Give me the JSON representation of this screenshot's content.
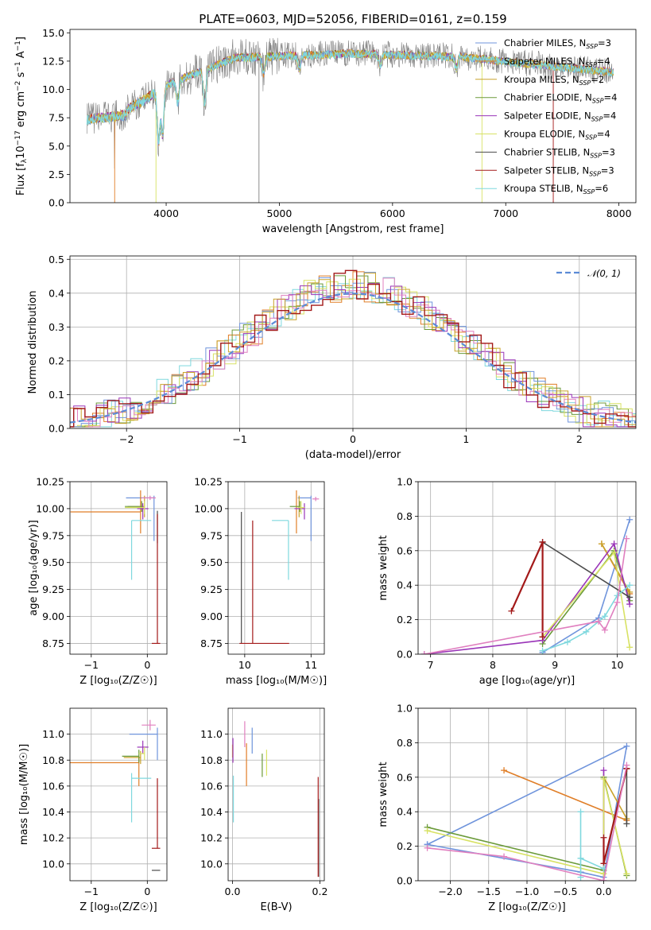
{
  "title": "PLATE=0603, MJD=52056, FIBERID=0161, z=0.159",
  "colors": {
    "chabrier_miles": "#6f94dc",
    "salpeter_miles": "#e07e27",
    "kroupa_miles": "#c9a22b",
    "chabrier_elodie": "#6b9a3a",
    "salpeter_elodie": "#9a35b8",
    "kroupa_elodie": "#d8e264",
    "chabrier_stelib": "#4a4a4a",
    "salpeter_stelib": "#a31a1a",
    "kroupa_stelib": "#7fd8de",
    "data": "#808080",
    "pink": "#e07fbf",
    "normal": "#5b8bd6"
  },
  "legend": {
    "series": [
      {
        "name": "Chabrier MILES, N",
        "sub": "SSP",
        "tail": "=3",
        "key": "chabrier_miles"
      },
      {
        "name": "Salpeter MILES, N",
        "sub": "SSP",
        "tail": "=4",
        "key": "salpeter_miles"
      },
      {
        "name": "Kroupa MILES, N",
        "sub": "SSP",
        "tail": "=2",
        "key": "kroupa_miles"
      },
      {
        "name": "Chabrier ELODIE, N",
        "sub": "SSP",
        "tail": "=4",
        "key": "chabrier_elodie"
      },
      {
        "name": "Salpeter ELODIE, N",
        "sub": "SSP",
        "tail": "=4",
        "key": "salpeter_elodie"
      },
      {
        "name": "Kroupa ELODIE, N",
        "sub": "SSP",
        "tail": "=4",
        "key": "kroupa_elodie"
      },
      {
        "name": "Chabrier STELIB, N",
        "sub": "SSP",
        "tail": "=3",
        "key": "chabrier_stelib"
      },
      {
        "name": "Salpeter STELIB, N",
        "sub": "SSP",
        "tail": "=3",
        "key": "salpeter_stelib"
      },
      {
        "name": "Kroupa STELIB, N",
        "sub": "SSP",
        "tail": "=6",
        "key": "kroupa_stelib"
      }
    ],
    "normal_label": "𝒩(0, 1)"
  },
  "chart_data": [
    {
      "id": "spectrum",
      "type": "line",
      "xlabel": "wavelength [Angstrom, rest frame]",
      "ylabel": "Flux [f_λ 10^-17 erg cm^-2 s^-1 A^-1]",
      "xlim": [
        3150,
        8150
      ],
      "ylim": [
        0,
        15.3
      ],
      "xticks": [
        4000,
        5000,
        6000,
        7000,
        8000
      ],
      "yticks": [
        "0.0",
        "2.5",
        "5.0",
        "7.5",
        "10.0",
        "12.5",
        "15.0"
      ],
      "spectrum_range": [
        3300,
        7950
      ],
      "grid": false,
      "legend_position": "upper right"
    },
    {
      "id": "residuals",
      "type": "histogram",
      "xlabel": "(data-model)/error",
      "ylabel": "Normed distribution",
      "xlim": [
        -2.5,
        2.5
      ],
      "ylim": [
        0,
        0.51
      ],
      "xticks": [
        "−2",
        "−1",
        "0",
        "1",
        "2"
      ],
      "yticks": [
        "0.0",
        "0.1",
        "0.2",
        "0.3",
        "0.4",
        "0.5"
      ],
      "grid": true,
      "legend_position": "upper right",
      "curve": "normal(0,1)"
    },
    {
      "id": "age_vs_Z",
      "type": "errorbar",
      "xlabel": "Z [log₁₀(Z/Z☉)]",
      "ylabel": "age  [log₁₀(age/yr)]",
      "xlim": [
        -1.38,
        0.35
      ],
      "ylim": [
        8.65,
        10.25
      ],
      "xticks": [
        "−1",
        "0"
      ],
      "yticks": [
        "8.75",
        "9.00",
        "9.25",
        "9.50",
        "9.75",
        "10.00",
        "10.25"
      ],
      "points": [
        {
          "key": "chabrier_miles",
          "x": 0.12,
          "xerr": [
            0.5,
            0.0
          ],
          "y": 10.1,
          "yerr": [
            0.4,
            0.02
          ]
        },
        {
          "key": "salpeter_miles",
          "x": -0.12,
          "xerr": [
            1.25,
            0.0
          ],
          "y": 9.97,
          "yerr": [
            0.2,
            0.2
          ]
        },
        {
          "key": "kroupa_miles",
          "x": -0.05,
          "xerr": [
            0.3,
            0.0
          ],
          "y": 10.02,
          "yerr": [
            0.1,
            0.1
          ]
        },
        {
          "key": "chabrier_elodie",
          "x": -0.1,
          "xerr": [
            0.3,
            0.0
          ],
          "y": 10.02,
          "yerr": [
            0.05,
            0.05
          ]
        },
        {
          "key": "salpeter_elodie",
          "x": -0.08,
          "xerr": [
            0.1,
            0.1
          ],
          "y": 10.0,
          "yerr": [
            0.1,
            0.05
          ]
        },
        {
          "key": "kroupa_elodie",
          "x": -0.05,
          "xerr": [
            0.35,
            0.0
          ],
          "y": 10.01,
          "yerr": [
            0.06,
            0.06
          ]
        },
        {
          "key": "chabrier_stelib",
          "x": 0.18,
          "xerr": [
            0.0,
            0.0
          ],
          "y": 9.98,
          "yerr": [
            0.3,
            0.0
          ]
        },
        {
          "key": "salpeter_stelib",
          "x": 0.18,
          "xerr": [
            0.1,
            0.05
          ],
          "y": 8.75,
          "yerr": [
            0.0,
            1.2
          ]
        },
        {
          "key": "kroupa_stelib",
          "x": -0.28,
          "xerr": [
            0.0,
            0.35
          ],
          "y": 9.89,
          "yerr": [
            0.55,
            0.0
          ]
        },
        {
          "key": "pink",
          "x": 0.05,
          "xerr": [
            0.15,
            0.1
          ],
          "y": 10.1,
          "yerr": [
            0.02,
            0.02
          ]
        }
      ]
    },
    {
      "id": "age_vs_mass",
      "type": "errorbar",
      "xlabel": "mass [log₁₀(M/M☉)]",
      "ylabel": "",
      "xlim": [
        9.75,
        11.2
      ],
      "ylim": [
        8.65,
        10.25
      ],
      "xticks": [
        "10",
        "11"
      ],
      "yticks": [
        "8.75",
        "9.00",
        "9.25",
        "9.50",
        "9.75",
        "10.00",
        "10.25"
      ],
      "points": [
        {
          "key": "chabrier_miles",
          "x": 11.0,
          "xerr": [
            0.2,
            0.0
          ],
          "y": 10.1,
          "yerr": [
            0.4,
            0.02
          ]
        },
        {
          "key": "salpeter_miles",
          "x": 10.78,
          "xerr": [
            0.0,
            0.0
          ],
          "y": 9.97,
          "yerr": [
            0.2,
            0.2
          ]
        },
        {
          "key": "kroupa_miles",
          "x": 10.82,
          "xerr": [
            0.0,
            0.0
          ],
          "y": 10.02,
          "yerr": [
            0.1,
            0.1
          ]
        },
        {
          "key": "chabrier_elodie",
          "x": 10.83,
          "xerr": [
            0.15,
            0.0
          ],
          "y": 10.02,
          "yerr": [
            0.05,
            0.05
          ]
        },
        {
          "key": "salpeter_elodie",
          "x": 10.9,
          "xerr": [
            0.15,
            0.0
          ],
          "y": 10.0,
          "yerr": [
            0.1,
            0.05
          ]
        },
        {
          "key": "kroupa_elodie",
          "x": 10.85,
          "xerr": [
            0.05,
            0.05
          ],
          "y": 10.01,
          "yerr": [
            0.06,
            0.06
          ]
        },
        {
          "key": "chabrier_stelib",
          "x": 9.95,
          "xerr": [
            0.0,
            0.0
          ],
          "y": 8.75,
          "yerr": [
            0.0,
            1.22
          ]
        },
        {
          "key": "salpeter_stelib",
          "x": 10.12,
          "xerr": [
            0.2,
            0.55
          ],
          "y": 8.75,
          "yerr": [
            0.0,
            1.14
          ]
        },
        {
          "key": "kroupa_stelib",
          "x": 10.66,
          "xerr": [
            0.25,
            0.0
          ],
          "y": 9.89,
          "yerr": [
            0.55,
            0.0
          ]
        },
        {
          "key": "pink",
          "x": 11.07,
          "xerr": [
            0.05,
            0.05
          ],
          "y": 10.09,
          "yerr": [
            0.02,
            0.02
          ]
        }
      ]
    },
    {
      "id": "weight_vs_age",
      "type": "line",
      "xlabel": "age  [log₁₀(age/yr)]",
      "ylabel": "mass weight",
      "xlim": [
        6.8,
        10.3
      ],
      "ylim": [
        0,
        1.0
      ],
      "xticks": [
        "7",
        "8",
        "9",
        "10"
      ],
      "yticks": [
        "0.0",
        "0.2",
        "0.4",
        "0.6",
        "0.8",
        "1.0"
      ],
      "series": [
        {
          "key": "chabrier_miles",
          "x": [
            8.8,
            9.7,
            10.2
          ],
          "y": [
            0.01,
            0.21,
            0.78
          ]
        },
        {
          "key": "salpeter_miles",
          "x": [
            9.75,
            10.2
          ],
          "y": [
            0.64,
            0.35
          ]
        },
        {
          "key": "kroupa_miles",
          "x": [
            9.75,
            10.2
          ],
          "y": [
            0.64,
            0.36
          ]
        },
        {
          "key": "chabrier_elodie",
          "x": [
            8.8,
            9.95,
            10.2
          ],
          "y": [
            0.06,
            0.6,
            0.31
          ]
        },
        {
          "key": "salpeter_elodie",
          "x": [
            6.9,
            8.8,
            9.95,
            10.2
          ],
          "y": [
            0.0,
            0.08,
            0.64,
            0.29
          ]
        },
        {
          "key": "kroupa_elodie",
          "x": [
            8.8,
            9.95,
            10.2
          ],
          "y": [
            0.1,
            0.59,
            0.04
          ]
        },
        {
          "key": "chabrier_stelib",
          "x": [
            8.8,
            10.2
          ],
          "y": [
            0.65,
            0.33
          ]
        },
        {
          "key": "salpeter_stelib",
          "x": [
            8.3,
            8.8,
            8.8
          ],
          "y": [
            0.25,
            0.65,
            0.1
          ]
        },
        {
          "key": "kroupa_stelib",
          "x": [
            8.8,
            9.2,
            9.5,
            9.8,
            10.0,
            10.2
          ],
          "y": [
            0.02,
            0.07,
            0.13,
            0.22,
            0.34,
            0.4
          ]
        },
        {
          "key": "pink",
          "x": [
            6.9,
            9.7,
            9.8,
            10.0,
            10.15
          ],
          "y": [
            0.0,
            0.19,
            0.14,
            0.3,
            0.67
          ]
        }
      ]
    },
    {
      "id": "mass_vs_Z",
      "type": "errorbar",
      "xlabel": "Z [log₁₀(Z/Z☉)]",
      "ylabel": "mass [log₁₀(M/M☉)]",
      "xlim": [
        -1.38,
        0.35
      ],
      "ylim": [
        9.87,
        11.2
      ],
      "xticks": [
        "−1",
        "0"
      ],
      "yticks": [
        "10.0",
        "10.2",
        "10.4",
        "10.6",
        "10.8",
        "11.0"
      ],
      "points": [
        {
          "key": "chabrier_miles",
          "x": 0.18,
          "xerr": [
            0.5,
            0.0
          ],
          "y": 11.0,
          "yerr": [
            0.2,
            0.05
          ]
        },
        {
          "key": "salpeter_miles",
          "x": -0.15,
          "xerr": [
            1.25,
            0.0
          ],
          "y": 10.78,
          "yerr": [
            0.18,
            0.05
          ]
        },
        {
          "key": "kroupa_miles",
          "x": -0.12,
          "xerr": [
            0.3,
            0.0
          ],
          "y": 10.82,
          "yerr": [
            0.05,
            0.05
          ]
        },
        {
          "key": "chabrier_elodie",
          "x": -0.15,
          "xerr": [
            0.3,
            0.0
          ],
          "y": 10.83,
          "yerr": [
            0.05,
            0.05
          ]
        },
        {
          "key": "salpeter_elodie",
          "x": -0.08,
          "xerr": [
            0.1,
            0.1
          ],
          "y": 10.9,
          "yerr": [
            0.05,
            0.05
          ]
        },
        {
          "key": "kroupa_elodie",
          "x": -0.05,
          "xerr": [
            0.1,
            0.0
          ],
          "y": 10.85,
          "yerr": [
            0.05,
            0.05
          ]
        },
        {
          "key": "chabrier_stelib",
          "x": 0.18,
          "xerr": [
            0.1,
            0.05
          ],
          "y": 9.95,
          "yerr": [
            0.0,
            0.0
          ]
        },
        {
          "key": "salpeter_stelib",
          "x": 0.18,
          "xerr": [
            0.1,
            0.05
          ],
          "y": 10.12,
          "yerr": [
            0.0,
            0.54
          ]
        },
        {
          "key": "kroupa_stelib",
          "x": -0.28,
          "xerr": [
            0.0,
            0.35
          ],
          "y": 10.66,
          "yerr": [
            0.34,
            0.04
          ]
        },
        {
          "key": "pink",
          "x": 0.05,
          "xerr": [
            0.15,
            0.1
          ],
          "y": 11.07,
          "yerr": [
            0.04,
            0.04
          ]
        }
      ]
    },
    {
      "id": "mass_vs_ebv",
      "type": "errorbar",
      "xlabel": "E(B-V)",
      "ylabel": "",
      "xlim": [
        -0.01,
        0.21
      ],
      "ylim": [
        9.87,
        11.2
      ],
      "xticks": [
        "0.0",
        "0.2"
      ],
      "yticks": [
        "10.0",
        "10.2",
        "10.4",
        "10.6",
        "10.8",
        "11.0"
      ],
      "points": [
        {
          "key": "chabrier_miles",
          "x": 0.045,
          "xerr": [
            0,
            0
          ],
          "y": 10.95,
          "yerr": [
            0.1,
            0.1
          ]
        },
        {
          "key": "salpeter_miles",
          "x": 0.032,
          "xerr": [
            0,
            0
          ],
          "y": 10.75,
          "yerr": [
            0.15,
            0.18
          ]
        },
        {
          "key": "kroupa_miles",
          "x": 0.0,
          "xerr": [
            0,
            0
          ],
          "y": 10.87,
          "yerr": [
            0.05,
            0.05
          ]
        },
        {
          "key": "chabrier_elodie",
          "x": 0.068,
          "xerr": [
            0,
            0
          ],
          "y": 10.75,
          "yerr": [
            0.08,
            0.1
          ]
        },
        {
          "key": "salpeter_elodie",
          "x": 0.001,
          "xerr": [
            0,
            0
          ],
          "y": 10.85,
          "yerr": [
            0.07,
            0.12
          ]
        },
        {
          "key": "kroupa_elodie",
          "x": 0.078,
          "xerr": [
            0,
            0
          ],
          "y": 10.78,
          "yerr": [
            0.1,
            0.1
          ]
        },
        {
          "key": "chabrier_stelib",
          "x": 0.197,
          "xerr": [
            0,
            0
          ],
          "y": 10.2,
          "yerr": [
            0.3,
            0.3
          ]
        },
        {
          "key": "salpeter_stelib",
          "x": 0.196,
          "xerr": [
            0,
            0
          ],
          "y": 10.25,
          "yerr": [
            0.35,
            0.42
          ]
        },
        {
          "key": "kroupa_stelib",
          "x": 0.002,
          "xerr": [
            0,
            0
          ],
          "y": 10.5,
          "yerr": [
            0.18,
            0.18
          ]
        },
        {
          "key": "pink",
          "x": 0.028,
          "xerr": [
            0,
            0
          ],
          "y": 11.0,
          "yerr": [
            0.1,
            0.1
          ]
        }
      ]
    },
    {
      "id": "weight_vs_Z",
      "type": "line",
      "xlabel": "Z [log₁₀(Z/Z☉)]",
      "ylabel": "mass weight",
      "xlim": [
        -2.42,
        0.42
      ],
      "ylim": [
        0,
        1.0
      ],
      "xticks": [
        "−2.0",
        "−1.5",
        "−1.0",
        "−0.5",
        "0.0"
      ],
      "yticks": [
        "0.0",
        "0.2",
        "0.4",
        "0.6",
        "0.8",
        "1.0"
      ],
      "series": [
        {
          "key": "chabrier_miles",
          "x": [
            -2.3,
            -0.3,
            0.0,
            0.3,
            -2.3
          ],
          "y": [
            0.21,
            0.05,
            0.02,
            0.78,
            0.21
          ]
        },
        {
          "key": "salpeter_miles",
          "x": [
            -1.3,
            0.3
          ],
          "y": [
            0.64,
            0.35
          ]
        },
        {
          "key": "kroupa_miles",
          "x": [
            0.0,
            0.3
          ],
          "y": [
            0.6,
            0.36
          ]
        },
        {
          "key": "chabrier_elodie",
          "x": [
            -2.3,
            0.0,
            0.0,
            0.3
          ],
          "y": [
            0.31,
            0.06,
            0.6,
            0.03
          ]
        },
        {
          "key": "salpeter_elodie",
          "x": [
            0.0,
            0.0
          ],
          "y": [
            0.64,
            0.0
          ]
        },
        {
          "key": "kroupa_elodie",
          "x": [
            -2.3,
            0.0,
            0.0,
            0.3
          ],
          "y": [
            0.29,
            0.04,
            0.59,
            0.04
          ]
        },
        {
          "key": "chabrier_stelib",
          "x": [
            0.3,
            0.3
          ],
          "y": [
            0.65,
            0.33
          ]
        },
        {
          "key": "salpeter_stelib",
          "x": [
            0.0,
            0.0,
            0.3,
            0.3
          ],
          "y": [
            0.25,
            0.1,
            0.65,
            0.65
          ]
        },
        {
          "key": "kroupa_stelib",
          "x": [
            -0.3,
            -0.3,
            -0.3,
            0.0
          ],
          "y": [
            0.02,
            0.4,
            0.13,
            0.07
          ]
        },
        {
          "key": "pink",
          "x": [
            -2.3,
            -1.3,
            0.0,
            0.3
          ],
          "y": [
            0.19,
            0.14,
            0.0,
            0.67
          ]
        }
      ]
    }
  ]
}
